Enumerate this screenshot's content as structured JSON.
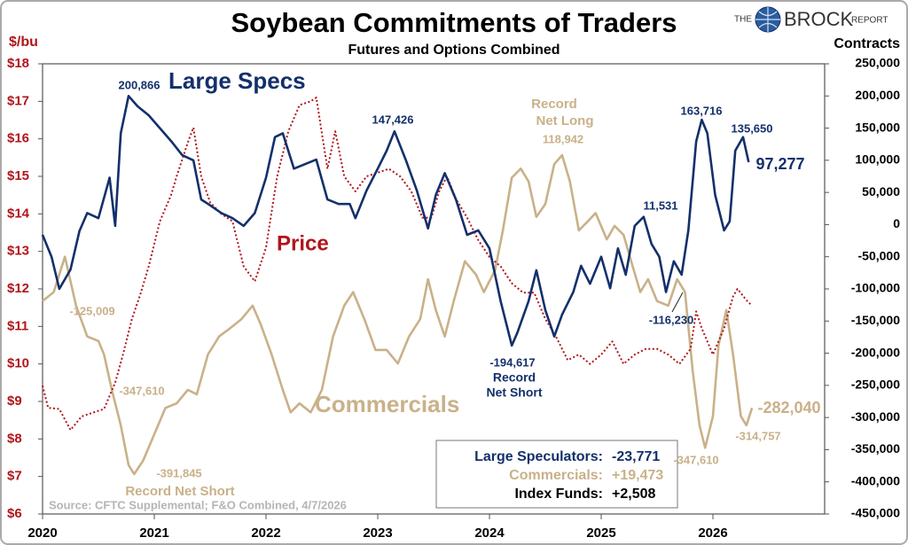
{
  "chart_data": {
    "type": "line",
    "title": "Soybean Commitments of Traders",
    "subtitle": "Futures and Options Combined",
    "brand": [
      "THE",
      "BROCK",
      "REPORT"
    ],
    "y_label": "$/bu",
    "y2_label": "Contracts",
    "source": "Source: CFTC Supplemental; F&O Combined, 4/7/2026",
    "xlim": [
      2020,
      2027
    ],
    "xticks": [
      2020,
      2021,
      2022,
      2023,
      2024,
      2025,
      2026
    ],
    "ylim": [
      6,
      18
    ],
    "yticks": [
      {
        "value": 6,
        "label": "$6"
      },
      {
        "value": 7,
        "label": "$7"
      },
      {
        "value": 8,
        "label": "$8"
      },
      {
        "value": 9,
        "label": "$9"
      },
      {
        "value": 10,
        "label": "$10"
      },
      {
        "value": 11,
        "label": "$11"
      },
      {
        "value": 12,
        "label": "$12"
      },
      {
        "value": 13,
        "label": "$13"
      },
      {
        "value": 14,
        "label": "$14"
      },
      {
        "value": 15,
        "label": "$15"
      },
      {
        "value": 16,
        "label": "$16"
      },
      {
        "value": 17,
        "label": "$17"
      },
      {
        "value": 18,
        "label": "$18"
      }
    ],
    "y2lim": [
      -450000,
      250000
    ],
    "y2ticks": [
      {
        "value": -450000,
        "label": "-450,000"
      },
      {
        "value": -400000,
        "label": "-400,000"
      },
      {
        "value": -350000,
        "label": "-350,000"
      },
      {
        "value": -300000,
        "label": "-300,000"
      },
      {
        "value": -250000,
        "label": "-250,000"
      },
      {
        "value": -200000,
        "label": "-200,000"
      },
      {
        "value": -150000,
        "label": "-150,000"
      },
      {
        "value": -100000,
        "label": "-100,000"
      },
      {
        "value": -50000,
        "label": "-50,000"
      },
      0,
      {
        "value": 50000,
        "label": "50,000"
      },
      {
        "value": 100000,
        "label": "100,000"
      },
      {
        "value": 150000,
        "label": "150,000"
      },
      {
        "value": 200000,
        "label": "200,000"
      },
      {
        "value": 250000,
        "label": "250,000"
      }
    ],
    "grid": false,
    "series": [
      {
        "name": "Large Specs",
        "color": "#14306b",
        "axis": "y2",
        "dashed": false,
        "x": [
          2020.0,
          2020.08,
          2020.15,
          2020.25,
          2020.33,
          2020.4,
          2020.5,
          2020.6,
          2020.65,
          2020.7,
          2020.77,
          2020.85,
          2020.95,
          2021.05,
          2021.15,
          2021.25,
          2021.35,
          2021.42,
          2021.5,
          2021.6,
          2021.7,
          2021.8,
          2021.9,
          2022.0,
          2022.08,
          2022.15,
          2022.25,
          2022.35,
          2022.45,
          2022.55,
          2022.65,
          2022.75,
          2022.8,
          2022.9,
          2023.0,
          2023.08,
          2023.15,
          2023.25,
          2023.35,
          2023.45,
          2023.52,
          2023.6,
          2023.7,
          2023.8,
          2023.9,
          2024.0,
          2024.1,
          2024.2,
          2024.25,
          2024.35,
          2024.42,
          2024.5,
          2024.58,
          2024.65,
          2024.75,
          2024.82,
          2024.9,
          2025.0,
          2025.08,
          2025.15,
          2025.22,
          2025.3,
          2025.38,
          2025.45,
          2025.52,
          2025.58,
          2025.65,
          2025.72,
          2025.78,
          2025.85,
          2025.9,
          2025.95,
          2026.02,
          2026.1,
          2026.15,
          2026.2,
          2026.27,
          2026.32
        ],
        "values": [
          -16000,
          -50000,
          -100000,
          -70000,
          -10000,
          18000,
          10000,
          73000,
          -2000,
          142000,
          200000,
          184000,
          170000,
          150000,
          130000,
          108000,
          100000,
          39000,
          30000,
          18000,
          10000,
          -2000,
          18000,
          73000,
          136000,
          142000,
          87000,
          94000,
          101000,
          39000,
          32000,
          32000,
          10000,
          53000,
          87000,
          115000,
          145000,
          101000,
          53000,
          -6000,
          46000,
          80000,
          39000,
          -16000,
          -9000,
          -37000,
          -119000,
          -188000,
          -168000,
          -119000,
          -71000,
          -133000,
          -174000,
          -140000,
          -105000,
          -64000,
          -92000,
          -50000,
          -99000,
          -37000,
          -78000,
          -2000,
          12000,
          -30000,
          -50000,
          -105000,
          -57000,
          -78000,
          -9000,
          129000,
          163000,
          142000,
          46000,
          -9000,
          5000,
          115000,
          136000,
          97000
        ]
      },
      {
        "name": "Commercials",
        "color": "#c9b189",
        "axis": "y2",
        "dashed": false,
        "x": [
          2020.0,
          2020.1,
          2020.2,
          2020.3,
          2020.4,
          2020.5,
          2020.55,
          2020.62,
          2020.7,
          2020.77,
          2020.82,
          2020.9,
          2021.0,
          2021.1,
          2021.2,
          2021.3,
          2021.38,
          2021.48,
          2021.58,
          2021.68,
          2021.78,
          2021.88,
          2021.95,
          2022.05,
          2022.15,
          2022.22,
          2022.3,
          2022.4,
          2022.5,
          2022.6,
          2022.7,
          2022.78,
          2022.88,
          2022.98,
          2023.08,
          2023.18,
          2023.28,
          2023.38,
          2023.45,
          2023.52,
          2023.6,
          2023.68,
          2023.78,
          2023.88,
          2023.95,
          2024.05,
          2024.12,
          2024.2,
          2024.28,
          2024.35,
          2024.42,
          2024.5,
          2024.58,
          2024.65,
          2024.72,
          2024.8,
          2024.88,
          2024.95,
          2025.05,
          2025.12,
          2025.2,
          2025.28,
          2025.35,
          2025.42,
          2025.5,
          2025.6,
          2025.68,
          2025.75,
          2025.82,
          2025.88,
          2025.93,
          2026.0,
          2026.05,
          2026.12,
          2026.18,
          2026.25,
          2026.3,
          2026.35
        ],
        "values": [
          -119000,
          -105000,
          -50000,
          -126000,
          -174000,
          -181000,
          -202000,
          -257000,
          -312000,
          -374000,
          -388000,
          -367000,
          -326000,
          -285000,
          -278000,
          -257000,
          -264000,
          -202000,
          -174000,
          -161000,
          -147000,
          -126000,
          -154000,
          -202000,
          -257000,
          -292000,
          -278000,
          -292000,
          -257000,
          -174000,
          -126000,
          -105000,
          -147000,
          -195000,
          -195000,
          -216000,
          -174000,
          -147000,
          -85000,
          -133000,
          -174000,
          -119000,
          -57000,
          -78000,
          -105000,
          -71000,
          -9000,
          73000,
          87000,
          67000,
          12000,
          32000,
          94000,
          108000,
          67000,
          -9000,
          5000,
          18000,
          -23000,
          -2000,
          -16000,
          -64000,
          -105000,
          -85000,
          -119000,
          -126000,
          -85000,
          -105000,
          -229000,
          -312000,
          -347000,
          -298000,
          -188000,
          -133000,
          -202000,
          -298000,
          -312000,
          -285000
        ]
      },
      {
        "name": "Price",
        "color": "#b0151b",
        "axis": "y",
        "dashed": true,
        "x": [
          2020.0,
          2020.05,
          2020.15,
          2020.25,
          2020.35,
          2020.45,
          2020.55,
          2020.65,
          2020.72,
          2020.8,
          2020.88,
          2020.95,
          2021.05,
          2021.15,
          2021.2,
          2021.3,
          2021.35,
          2021.42,
          2021.5,
          2021.6,
          2021.7,
          2021.8,
          2021.9,
          2022.0,
          2022.1,
          2022.2,
          2022.3,
          2022.4,
          2022.45,
          2022.55,
          2022.62,
          2022.7,
          2022.8,
          2022.9,
          2023.0,
          2023.1,
          2023.2,
          2023.3,
          2023.4,
          2023.48,
          2023.55,
          2023.62,
          2023.7,
          2023.8,
          2023.9,
          2024.0,
          2024.1,
          2024.2,
          2024.3,
          2024.4,
          2024.5,
          2024.6,
          2024.7,
          2024.8,
          2024.9,
          2025.0,
          2025.1,
          2025.2,
          2025.3,
          2025.4,
          2025.5,
          2025.6,
          2025.7,
          2025.8,
          2025.85,
          2025.9,
          2026.0,
          2026.1,
          2026.18,
          2026.22,
          2026.3,
          2026.35
        ],
        "values": [
          9.42,
          8.83,
          8.8,
          8.24,
          8.6,
          8.7,
          8.8,
          9.5,
          10.25,
          11.2,
          11.9,
          12.6,
          13.8,
          14.5,
          15.0,
          15.9,
          16.3,
          15.0,
          14.3,
          14.0,
          13.8,
          12.6,
          12.2,
          13.1,
          15.0,
          16.2,
          16.9,
          17.0,
          17.1,
          15.2,
          16.2,
          15.0,
          14.6,
          15.0,
          15.1,
          15.2,
          15.0,
          14.6,
          13.9,
          13.9,
          14.6,
          15.0,
          14.4,
          13.9,
          13.3,
          12.85,
          12.6,
          12.15,
          11.9,
          11.9,
          11.2,
          10.7,
          10.1,
          10.25,
          10.0,
          10.25,
          10.6,
          10.0,
          10.25,
          10.4,
          10.4,
          10.25,
          10.0,
          10.4,
          11.4,
          10.95,
          10.25,
          10.95,
          11.8,
          12.0,
          11.7,
          11.55
        ]
      }
    ],
    "annotations": [
      "200,866",
      "147,426",
      "11,531",
      "163,716",
      "135,650",
      "97,277",
      "-194,617",
      "Record",
      "Net Short",
      "-116,230",
      "Record",
      "Net Long",
      "118,942",
      "-125,009",
      "-347,610",
      "-391,845",
      "Record Net Short",
      "-347,610",
      "-314,757",
      "-282,040"
    ],
    "summary": [
      {
        "label": "Large Speculators:",
        "change": "-23,771"
      },
      {
        "label": "Commercials:",
        "change": "+19,473"
      },
      {
        "label": "Index Funds:",
        "change": "+2,508"
      }
    ]
  }
}
